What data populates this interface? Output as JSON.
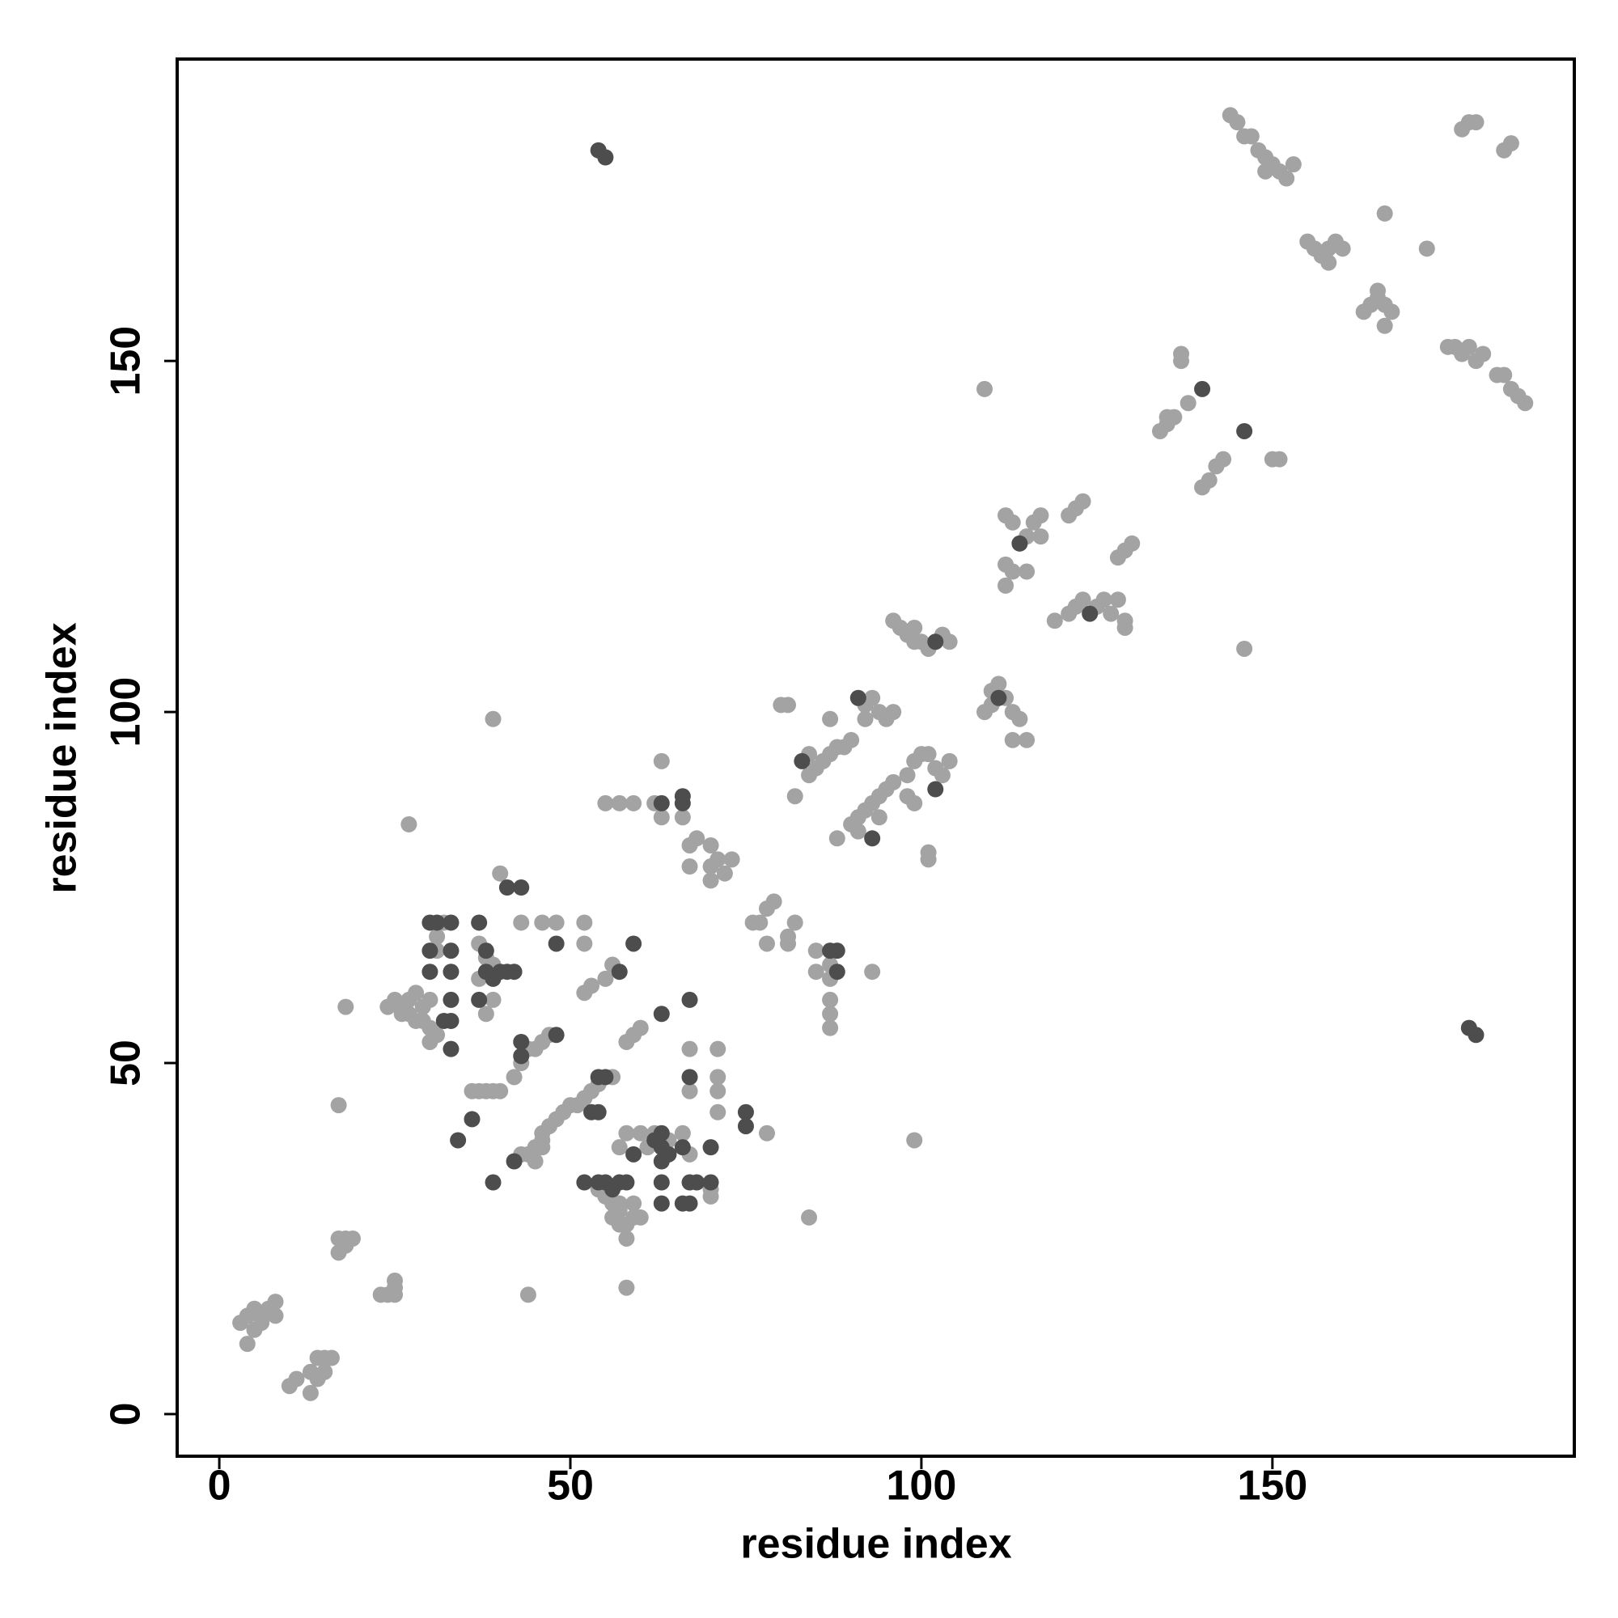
{
  "chart_data": {
    "type": "scatter",
    "x_label": "residue index",
    "y_label": "residue index",
    "xlim": [
      -6,
      193
    ],
    "ylim": [
      -6,
      193
    ],
    "xticks": [
      0,
      50,
      100,
      150
    ],
    "yticks": [
      0,
      50,
      100,
      150
    ],
    "series": [
      {
        "color": "#a3a3a3",
        "x": [
          3,
          4,
          5,
          6,
          5,
          4,
          8,
          8,
          6,
          7,
          10,
          11,
          13,
          14,
          15,
          15,
          16,
          14,
          13,
          17,
          18,
          17,
          19,
          18,
          23,
          24,
          25,
          25,
          25,
          18,
          17,
          27,
          39,
          44,
          58,
          84,
          99,
          24,
          25,
          26,
          27,
          28,
          29,
          30,
          29,
          30,
          31,
          30,
          27,
          26,
          28,
          31,
          31,
          32,
          37,
          38,
          39,
          38,
          37,
          39,
          38,
          40,
          43,
          48,
          52,
          46,
          52,
          36,
          37,
          38,
          39,
          40,
          42,
          43,
          44,
          45,
          46,
          47,
          43,
          44,
          45,
          45,
          46,
          46,
          47,
          46,
          48,
          49,
          50,
          51,
          52,
          53,
          54,
          56,
          52,
          53,
          55,
          56,
          58,
          59,
          60,
          54,
          55,
          56,
          57,
          56,
          57,
          58,
          58,
          59,
          59,
          60,
          57,
          57,
          58,
          60,
          61,
          62,
          64,
          66,
          67,
          70,
          70,
          55,
          57,
          59,
          62,
          63,
          63,
          66,
          67,
          68,
          67,
          70,
          70,
          71,
          72,
          70,
          73,
          67,
          67,
          71,
          71,
          71,
          71,
          78,
          76,
          77,
          78,
          79,
          78,
          81,
          82,
          81,
          85,
          85,
          87,
          87,
          87,
          87,
          87,
          93,
          82,
          84,
          85,
          86,
          87,
          88,
          89,
          90,
          87,
          84,
          80,
          81,
          88,
          90,
          91,
          92,
          93,
          94,
          95,
          96,
          91,
          94,
          92,
          93,
          94,
          95,
          96,
          92,
          98,
          98,
          99,
          100,
          101,
          102,
          103,
          104,
          99,
          101,
          101,
          96,
          97,
          98,
          99,
          100,
          101,
          102,
          103,
          104,
          99,
          109,
          110,
          110,
          111,
          112,
          113,
          114,
          113,
          115,
          109,
          112,
          113,
          114,
          115,
          116,
          117,
          117,
          112,
          113,
          115,
          112,
          119,
          121,
          122,
          123,
          125,
          126,
          127,
          128,
          129,
          129,
          121,
          122,
          123,
          128,
          129,
          130,
          134,
          135,
          135,
          136,
          137,
          137,
          138,
          140,
          141,
          142,
          143,
          150,
          151,
          146,
          144,
          145,
          146,
          147,
          148,
          149,
          150,
          151,
          152,
          153,
          149,
          155,
          156,
          157,
          158,
          159,
          160,
          158,
          163,
          164,
          165,
          166,
          167,
          166,
          165,
          166,
          172,
          175,
          176,
          177,
          178,
          179,
          180,
          182,
          183,
          184,
          185,
          186,
          177,
          178,
          179,
          183,
          184
        ],
        "y": [
          13,
          14,
          15,
          14,
          12,
          10,
          16,
          14,
          13,
          15,
          4,
          5,
          3,
          5,
          6,
          8,
          8,
          8,
          6,
          23,
          24,
          25,
          25,
          25,
          17,
          17,
          18,
          19,
          17,
          58,
          44,
          84,
          99,
          17,
          18,
          28,
          39,
          58,
          59,
          58,
          57,
          60,
          58,
          59,
          56,
          55,
          54,
          53,
          59,
          57,
          56,
          66,
          68,
          70,
          67,
          65,
          64,
          63,
          62,
          59,
          57,
          77,
          70,
          70,
          70,
          70,
          67,
          46,
          46,
          46,
          46,
          46,
          48,
          50,
          52,
          52,
          53,
          54,
          37,
          37,
          38,
          36,
          39,
          40,
          41,
          38,
          42,
          43,
          44,
          44,
          45,
          46,
          47,
          48,
          60,
          61,
          62,
          64,
          53,
          54,
          55,
          32,
          31,
          30,
          30,
          28,
          27,
          25,
          27,
          28,
          30,
          28,
          29,
          38,
          40,
          40,
          38,
          40,
          39,
          40,
          37,
          32,
          31,
          87,
          87,
          87,
          87,
          85,
          93,
          85,
          81,
          82,
          78,
          81,
          78,
          79,
          77,
          76,
          79,
          52,
          46,
          52,
          48,
          46,
          43,
          40,
          70,
          70,
          72,
          73,
          67,
          68,
          70,
          67,
          66,
          63,
          64,
          62,
          59,
          57,
          55,
          63,
          88,
          91,
          92,
          93,
          94,
          95,
          95,
          96,
          99,
          94,
          101,
          101,
          82,
          84,
          85,
          86,
          87,
          88,
          89,
          90,
          83,
          85,
          101,
          102,
          100,
          99,
          100,
          99,
          88,
          91,
          93,
          94,
          94,
          92,
          91,
          93,
          87,
          80,
          79,
          113,
          112,
          111,
          112,
          110,
          109,
          110,
          111,
          110,
          110,
          100,
          101,
          103,
          104,
          102,
          100,
          99,
          96,
          96,
          146,
          128,
          127,
          124,
          125,
          127,
          128,
          125,
          121,
          120,
          120,
          118,
          113,
          114,
          115,
          116,
          115,
          116,
          114,
          116,
          113,
          112,
          128,
          129,
          130,
          122,
          123,
          124,
          140,
          141,
          142,
          142,
          151,
          150,
          144,
          132,
          133,
          135,
          136,
          136,
          136,
          109,
          185,
          184,
          182,
          182,
          180,
          179,
          178,
          177,
          176,
          178,
          177,
          167,
          166,
          165,
          166,
          167,
          166,
          164,
          157,
          158,
          159,
          158,
          157,
          155,
          160,
          171,
          166,
          152,
          152,
          151,
          152,
          150,
          151,
          148,
          148,
          146,
          145,
          144,
          183,
          184,
          184,
          180,
          181
        ]
      },
      {
        "color": "#4d4d4d",
        "x": [
          54,
          55,
          178,
          179,
          30,
          31,
          33,
          30,
          30,
          33,
          33,
          33,
          33,
          32,
          33,
          37,
          38,
          38,
          39,
          40,
          41,
          42,
          37,
          34,
          36,
          39,
          42,
          41,
          43,
          43,
          43,
          48,
          48,
          54,
          55,
          53,
          54,
          52,
          54,
          55,
          56,
          57,
          58,
          59,
          63,
          63,
          63,
          63,
          63,
          62,
          64,
          66,
          67,
          68,
          66,
          67,
          70,
          70,
          67,
          63,
          67,
          59,
          57,
          63,
          66,
          66,
          75,
          75,
          83,
          87,
          88,
          88,
          91,
          93,
          102,
          102,
          111,
          114,
          124,
          140,
          146
        ],
        "y": [
          180,
          179,
          55,
          54,
          70,
          70,
          70,
          66,
          63,
          66,
          63,
          59,
          56,
          56,
          52,
          70,
          66,
          63,
          62,
          63,
          63,
          63,
          59,
          39,
          42,
          33,
          36,
          75,
          75,
          53,
          51,
          54,
          67,
          48,
          48,
          43,
          43,
          33,
          33,
          33,
          32,
          33,
          33,
          37,
          30,
          33,
          36,
          38,
          40,
          39,
          37,
          38,
          33,
          33,
          30,
          30,
          38,
          33,
          48,
          57,
          59,
          67,
          63,
          87,
          87,
          88,
          43,
          41,
          93,
          66,
          66,
          63,
          102,
          82,
          89,
          110,
          102,
          124,
          114,
          146,
          140
        ]
      }
    ]
  }
}
